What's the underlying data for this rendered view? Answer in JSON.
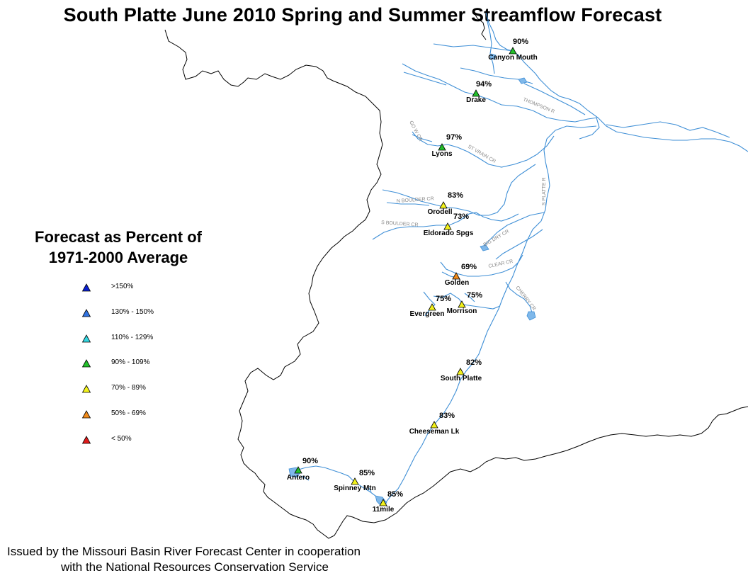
{
  "title": "South Platte June 2010 Spring and Summer Streamflow Forecast",
  "legend": {
    "title_line1": "Forecast as Percent of",
    "title_line2": "1971-2000 Average",
    "items": [
      {
        "label": ">150%",
        "color": "#0a1fd0"
      },
      {
        "label": "130% - 150%",
        "color": "#2f72e0"
      },
      {
        "label": "110% - 129%",
        "color": "#33d6e0"
      },
      {
        "label": "90% - 109%",
        "color": "#22c02a"
      },
      {
        "label": "70% - 89%",
        "color": "#f2f21a"
      },
      {
        "label": "50% - 69%",
        "color": "#f08a1a"
      },
      {
        "label": "< 50%",
        "color": "#e01a1a"
      }
    ]
  },
  "stations": [
    {
      "name": "Canyon Mouth",
      "pct": "90%",
      "category": "90% - 109%"
    },
    {
      "name": "Drake",
      "pct": "94%",
      "category": "90% - 109%"
    },
    {
      "name": "Lyons",
      "pct": "97%",
      "category": "90% - 109%"
    },
    {
      "name": "Orodell",
      "pct": "83%",
      "category": "70% - 89%"
    },
    {
      "name": "Eldorado Spgs",
      "pct": "73%",
      "category": "70% - 89%"
    },
    {
      "name": "Golden",
      "pct": "69%",
      "category": "50% - 69%"
    },
    {
      "name": "Evergreen",
      "pct": "75%",
      "category": "70% - 89%"
    },
    {
      "name": "Morrison",
      "pct": "75%",
      "category": "70% - 89%"
    },
    {
      "name": "South Platte",
      "pct": "82%",
      "category": "70% - 89%"
    },
    {
      "name": "Cheeseman Lk",
      "pct": "83%",
      "category": "70% - 89%"
    },
    {
      "name": "Antero",
      "pct": "90%",
      "category": "90% - 109%"
    },
    {
      "name": "Spinney Mtn",
      "pct": "85%",
      "category": "70% - 89%"
    },
    {
      "name": "11mile",
      "pct": "85%",
      "category": "70% - 89%"
    }
  ],
  "river_labels": [
    "THOMPSON R",
    "GO W CR",
    "ST VRAIN CR",
    "N BOULDER CR",
    "S BOULDER CR",
    "BIG DRY CR",
    "S PLATTE R",
    "CLEAR CR",
    "CHERRY CR"
  ],
  "footer": {
    "line1": "Issued by the Missouri Basin River Forecast Center in cooperation",
    "line2": "with the National Resources Conservation Service"
  }
}
